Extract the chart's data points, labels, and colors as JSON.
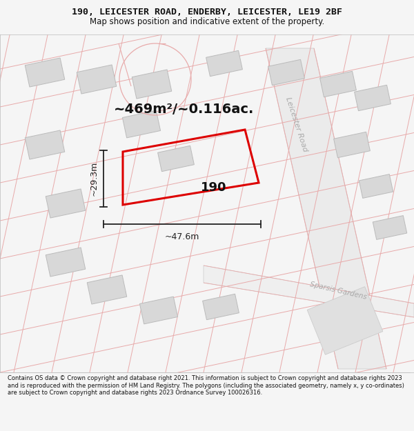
{
  "title_line1": "190, LEICESTER ROAD, ENDERBY, LEICESTER, LE19 2BF",
  "title_line2": "Map shows position and indicative extent of the property.",
  "footer_text": "Contains OS data © Crown copyright and database right 2021. This information is subject to Crown copyright and database rights 2023 and is reproduced with the permission of HM Land Registry. The polygons (including the associated geometry, namely x, y co-ordinates) are subject to Crown copyright and database rights 2023 Ordnance Survey 100026316.",
  "area_label": "~469m²/~0.116ac.",
  "property_number": "190",
  "dim_width": "~47.6m",
  "dim_height": "~29.3m",
  "road_label1": "Leicester Road",
  "road_label2": "Sparsis Gardens",
  "bg_color": "#f5f5f5",
  "map_bg": "#ffffff",
  "plot_color": "#dd0000",
  "road_line_color": "#e8aaaa",
  "road_fill_color": "#f8f0f0",
  "building_fill": "#d8d8d8",
  "building_edge": "#bbbbbb",
  "gray_road_color": "#cccccc",
  "road_label_color": "#aaaaaa",
  "dim_color": "#222222"
}
